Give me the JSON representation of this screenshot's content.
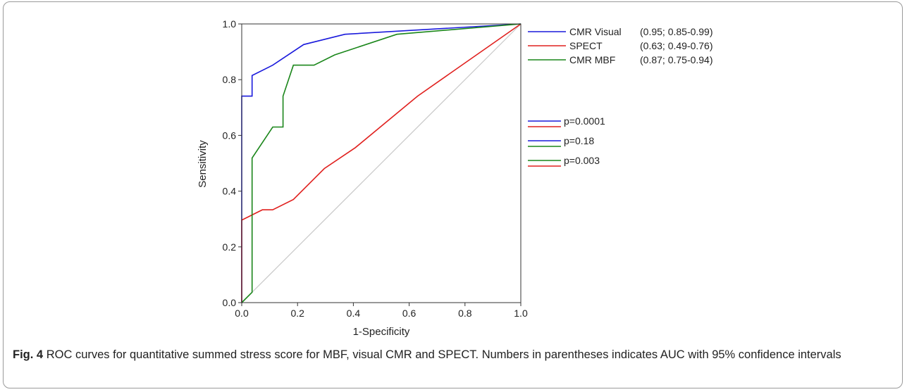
{
  "chart_data": {
    "type": "line",
    "xlabel": "1-Specificity",
    "ylabel": "Sensitivity",
    "xlim": [
      0,
      1
    ],
    "ylim": [
      0,
      1
    ],
    "xticks": [
      "0.0",
      "0.2",
      "0.4",
      "0.6",
      "0.8",
      "1.0"
    ],
    "yticks": [
      "0.0",
      "0.2",
      "0.4",
      "0.6",
      "0.8",
      "1.0"
    ],
    "grid": false,
    "legend_position": "right",
    "reference_line": {
      "color": "#c8c8c8",
      "from": [
        0,
        0
      ],
      "to": [
        1,
        1
      ]
    },
    "series": [
      {
        "name": "CMR Visual",
        "auc_label": "(0.95; 0.85-0.99)",
        "color": "#1a1adc",
        "points": [
          [
            0,
            0
          ],
          [
            0,
            0.296
          ],
          [
            0,
            0.741
          ],
          [
            0.037,
            0.741
          ],
          [
            0.037,
            0.815
          ],
          [
            0.111,
            0.852
          ],
          [
            0.222,
            0.926
          ],
          [
            0.37,
            0.963
          ],
          [
            1,
            1
          ]
        ]
      },
      {
        "name": "SPECT",
        "auc_label": "(0.63; 0.49-0.76)",
        "color": "#e0201e",
        "points": [
          [
            0,
            0
          ],
          [
            0,
            0.296
          ],
          [
            0.074,
            0.333
          ],
          [
            0.111,
            0.333
          ],
          [
            0.185,
            0.37
          ],
          [
            0.296,
            0.481
          ],
          [
            0.407,
            0.556
          ],
          [
            0.63,
            0.741
          ],
          [
            1,
            1
          ]
        ]
      },
      {
        "name": "CMR MBF",
        "auc_label": "(0.87; 0.75-0.94)",
        "color": "#1a861a",
        "points": [
          [
            0,
            0
          ],
          [
            0.037,
            0.037
          ],
          [
            0.037,
            0.519
          ],
          [
            0.111,
            0.63
          ],
          [
            0.148,
            0.63
          ],
          [
            0.148,
            0.741
          ],
          [
            0.185,
            0.852
          ],
          [
            0.259,
            0.852
          ],
          [
            0.333,
            0.889
          ],
          [
            0.556,
            0.963
          ],
          [
            1,
            1
          ]
        ]
      }
    ],
    "comparisons": [
      {
        "label": "p=0.0001",
        "colors": [
          "#1a1adc",
          "#e0201e"
        ]
      },
      {
        "label": "p=0.18",
        "colors": [
          "#1a1adc",
          "#1a861a"
        ]
      },
      {
        "label": "p=0.003",
        "colors": [
          "#1a861a",
          "#e0201e"
        ]
      }
    ]
  },
  "caption": {
    "figure_label": "Fig. 4",
    "text": "ROC curves for quantitative summed stress score for MBF, visual CMR and SPECT. Numbers in parentheses indicates AUC with 95% confidence intervals"
  }
}
